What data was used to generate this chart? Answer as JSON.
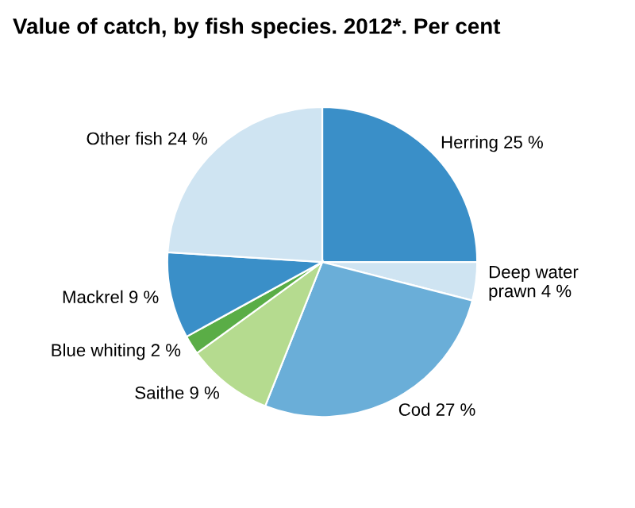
{
  "chart_data": {
    "type": "pie",
    "title": "Value of catch, by fish species. 2012*. Per cent",
    "categories": [
      "Herring",
      "Deep water\nprawn",
      "Cod",
      "Saithe",
      "Blue whiting",
      "Mackrel",
      "Other fish"
    ],
    "values": [
      25,
      4,
      27,
      9,
      2,
      9,
      24
    ],
    "value_labels": [
      "25 %",
      "4 %",
      "27 %",
      "9 %",
      "2 %",
      "9 %",
      "24 %"
    ],
    "colors": [
      "#3a8fc8",
      "#cfe4f2",
      "#6aaed8",
      "#b5db8f",
      "#5aad46",
      "#3a8fc8",
      "#cfe4f2"
    ],
    "legend": false
  }
}
